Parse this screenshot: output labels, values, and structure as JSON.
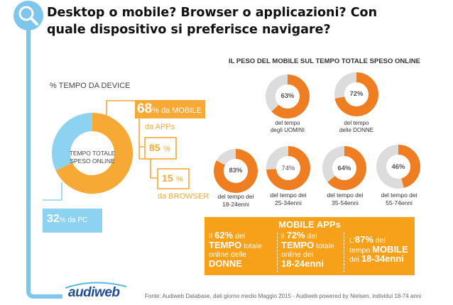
{
  "title": "Desktop o mobile? Browser o applicazioni? Con quale dispositivo si preferisce navigare?",
  "colors": {
    "orange": "#f7a935",
    "dark_orange": "#ef7d22",
    "blue": "#5ab8e6",
    "light_blue": "#8ed2f2",
    "grey": "#dcdcdc"
  },
  "device": {
    "section_label": "% TEMPO DA DEVICE",
    "donut_center": [
      "TEMPO TOTALE",
      "SPESO ONLINE"
    ],
    "mobile_value": "68",
    "mobile_label": "% da MOBILE",
    "apps_label": "da APPs",
    "apps_value": "85",
    "apps_unit": "%",
    "browser_value": "15",
    "browser_unit": "%",
    "browser_label": "da BROWSER",
    "pc_value": "32",
    "pc_label": "% da PC"
  },
  "mobile_weight": {
    "section_label": "IL PESO DEL MOBILE SUL TEMPO TOTALE SPESO ONLINE",
    "gender": [
      {
        "value": "63%",
        "label": [
          "del tempo",
          "degli UOMINI"
        ]
      },
      {
        "value": "72%",
        "label": [
          "del tempo",
          "delle DONNE"
        ]
      }
    ],
    "age": [
      {
        "value": "83%",
        "label": [
          "del tempo dei",
          "18-24enni"
        ]
      },
      {
        "value": "74%",
        "label": [
          "del tempo dei",
          "25-34enni"
        ]
      },
      {
        "value": "64%",
        "label": [
          "del tempo dei",
          "35-54enni"
        ]
      },
      {
        "value": "46%",
        "label": [
          "del tempo dei",
          "55-74enni"
        ]
      }
    ]
  },
  "apps_box": {
    "header": "MOBILE APPs",
    "col1": {
      "prefix": "Il ",
      "pct": "62%",
      "l1": " del",
      "big": "TEMPO",
      "l2": " totale",
      "l3": "online delle",
      "l4": "DONNE"
    },
    "col2": {
      "prefix": "il ",
      "pct": "72%",
      "l1": " del",
      "big": "TEMPO",
      "l2": " totale",
      "l3": "online dei",
      "l4": "18-24enni"
    },
    "col3": {
      "prefix": "L'",
      "pct": "87%",
      "l1": " del",
      "l2": "tempo ",
      "big": "MOBILE",
      "l3": "dei ",
      "l4": "18-34enni"
    }
  },
  "chart_data": {
    "type": "pie",
    "title": "IL PESO DEL MOBILE SUL TEMPO TOTALE SPESO ONLINE",
    "device_split": {
      "categories": [
        "MOBILE",
        "PC"
      ],
      "values": [
        68,
        32
      ]
    },
    "mobile_split": {
      "categories": [
        "APPs",
        "BROWSER"
      ],
      "values": [
        85,
        15
      ]
    },
    "gender": {
      "categories": [
        "UOMINI",
        "DONNE"
      ],
      "values": [
        63,
        72
      ]
    },
    "age": {
      "categories": [
        "18-24enni",
        "25-34enni",
        "35-54enni",
        "55-74enni"
      ],
      "values": [
        83,
        74,
        64,
        46
      ]
    }
  },
  "logo_text": "audiweb",
  "footer": "Fonte: Audiweb Database, dati giorno medio Maggio 2015 - Audiweb powered by Nielsen, individui 18-74 anni"
}
